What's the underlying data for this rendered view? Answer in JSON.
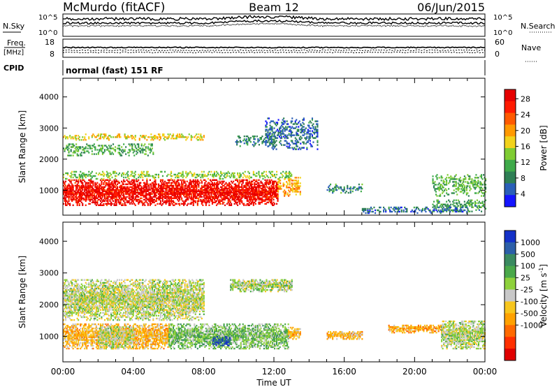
{
  "header": {
    "station": "McMurdo (fitACF)",
    "beam": "Beam 12",
    "date": "06/Jun/2015"
  },
  "summary_panels": {
    "nsky_label": "N.Sky",
    "nsearch_label": "N.Search",
    "nsky_ticks": [
      "10^5",
      "10^0"
    ],
    "nsearch_ticks": [
      "10^5",
      "10^0"
    ],
    "freq_label": "Freq.",
    "freq_unit": "[MHz]",
    "freq_ticks": [
      "18",
      "8"
    ],
    "nave_label": "Nave",
    "nave_ticks": [
      "60",
      "0"
    ],
    "cpid_label": "CPID",
    "cpid_text": "normal (fast) 151 RF"
  },
  "colors": {
    "power": [
      "#1414ff",
      "#2a5fb8",
      "#2e7f55",
      "#3faa4a",
      "#7fcc33",
      "#f2d21c",
      "#ff9900",
      "#ff5a00",
      "#ff1a00",
      "#e60000"
    ],
    "velocity": [
      "#1431c8",
      "#2c5fa8",
      "#3a8a60",
      "#4aa84a",
      "#8ed13c",
      "#c8c8c8",
      "#f7c61e",
      "#ffa100",
      "#ff6a00",
      "#ff3000",
      "#e00000"
    ]
  },
  "chart_data": [
    {
      "type": "heatmap",
      "name": "power",
      "ylabel": "Slant Range [km]",
      "yticks": [
        "4000",
        "3000",
        "2000",
        "1000"
      ],
      "ylim": [
        200,
        4600
      ],
      "xlim": [
        0,
        24
      ],
      "colorbar_label": "Power [dB]",
      "colorbar_ticks": [
        "28",
        "24",
        "20",
        "16",
        "12",
        "8",
        "4"
      ],
      "clim": [
        0,
        32
      ],
      "regions": [
        {
          "t0": 0.0,
          "t1": 12.2,
          "r0": 500,
          "r1": 1350,
          "level": 29
        },
        {
          "t0": 12.2,
          "t1": 13.5,
          "r0": 800,
          "r1": 1400,
          "level": 20
        },
        {
          "t0": 0.0,
          "t1": 13.0,
          "r0": 1350,
          "r1": 1600,
          "level": 14
        },
        {
          "t0": 0.0,
          "t1": 5.2,
          "r0": 2100,
          "r1": 2500,
          "level": 11
        },
        {
          "t0": 0.0,
          "t1": 8.0,
          "r0": 2600,
          "r1": 2800,
          "level": 18
        },
        {
          "t0": 9.8,
          "t1": 12.0,
          "r0": 2400,
          "r1": 2750,
          "level": 8
        },
        {
          "t0": 11.5,
          "t1": 14.5,
          "r0": 2300,
          "r1": 3300,
          "level": 6
        },
        {
          "t0": 15.0,
          "t1": 17.0,
          "r0": 900,
          "r1": 1200,
          "level": 9
        },
        {
          "t0": 21.0,
          "t1": 24.0,
          "r0": 800,
          "r1": 1500,
          "level": 12
        },
        {
          "t0": 21.0,
          "t1": 24.0,
          "r0": 300,
          "r1": 700,
          "level": 10
        },
        {
          "t0": 17.0,
          "t1": 23.0,
          "r0": 250,
          "r1": 450,
          "level": 6
        }
      ]
    },
    {
      "type": "heatmap",
      "name": "velocity",
      "ylabel": "Slant Range [km]",
      "yticks": [
        "4000",
        "3000",
        "2000",
        "1000"
      ],
      "ylim": [
        200,
        4600
      ],
      "xlim": [
        0,
        24
      ],
      "xlabel": "Time UT",
      "xticks": [
        "00:00",
        "04:00",
        "08:00",
        "12:00",
        "16:00",
        "20:00",
        "00:00"
      ],
      "colorbar_label": "Velocity [m s^-1]",
      "colorbar_ticks": [
        "1000",
        "500",
        "100",
        "25",
        "-25",
        "-100",
        "-500",
        "-1000"
      ],
      "clim": [
        -1250,
        1250
      ],
      "regions": [
        {
          "t0": 0.0,
          "t1": 6.0,
          "r0": 600,
          "r1": 1400,
          "level": -300
        },
        {
          "t0": 6.0,
          "t1": 12.8,
          "r0": 600,
          "r1": 1400,
          "level": 300
        },
        {
          "t0": 2.0,
          "t1": 4.0,
          "r0": 600,
          "r1": 1300,
          "level": 80
        },
        {
          "t0": 8.5,
          "t1": 9.5,
          "r0": 700,
          "r1": 1000,
          "level": 900
        },
        {
          "t0": 12.8,
          "t1": 13.5,
          "r0": 900,
          "r1": 1300,
          "level": -300
        },
        {
          "t0": 0.0,
          "t1": 8.0,
          "r0": 1500,
          "r1": 2800,
          "level": 60
        },
        {
          "t0": 9.5,
          "t1": 13.0,
          "r0": 2400,
          "r1": 2800,
          "level": 120
        },
        {
          "t0": 15.0,
          "t1": 17.0,
          "r0": 900,
          "r1": 1150,
          "level": -300
        },
        {
          "t0": 18.5,
          "t1": 21.5,
          "r0": 1100,
          "r1": 1350,
          "level": -400
        },
        {
          "t0": 21.5,
          "t1": 24.0,
          "r0": 600,
          "r1": 1500,
          "level": 90
        }
      ]
    }
  ]
}
